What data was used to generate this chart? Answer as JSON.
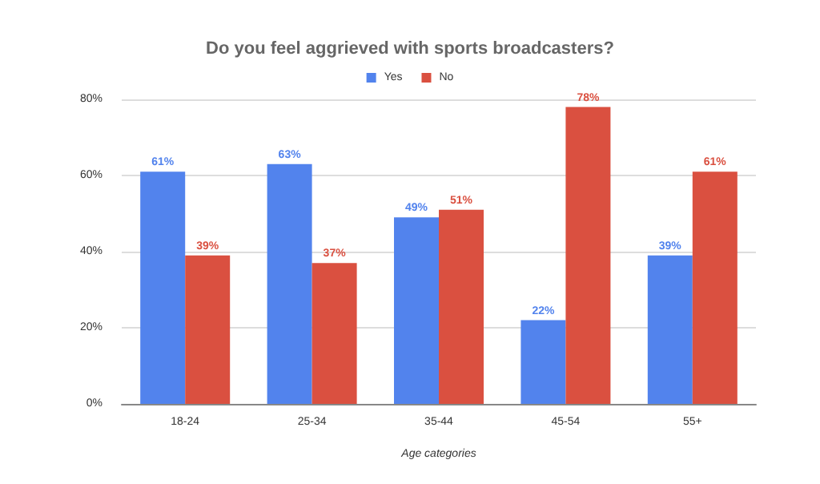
{
  "chart_data": {
    "type": "bar",
    "title": "Do you feel aggrieved with sports broadcasters?",
    "xlabel": "Age categories",
    "categories": [
      "18-24",
      "25-34",
      "35-44",
      "45-54",
      "55+"
    ],
    "series": [
      {
        "name": "Yes",
        "color": "#5283ed",
        "values": [
          61,
          63,
          49,
          22,
          39
        ],
        "value_labels": [
          "61%",
          "63%",
          "49%",
          "22%",
          "39%"
        ]
      },
      {
        "name": "No",
        "color": "#da5040",
        "values": [
          39,
          37,
          51,
          78,
          61
        ],
        "value_labels": [
          "39%",
          "37%",
          "51%",
          "78%",
          "61%"
        ]
      }
    ],
    "ylim": [
      0,
      80
    ],
    "yticks": [
      {
        "value": 0,
        "label": "0%"
      },
      {
        "value": 20,
        "label": "20%"
      },
      {
        "value": 40,
        "label": "40%"
      },
      {
        "value": 60,
        "label": "60%"
      },
      {
        "value": 80,
        "label": "80%"
      }
    ],
    "grid": "y",
    "legend": "top"
  }
}
